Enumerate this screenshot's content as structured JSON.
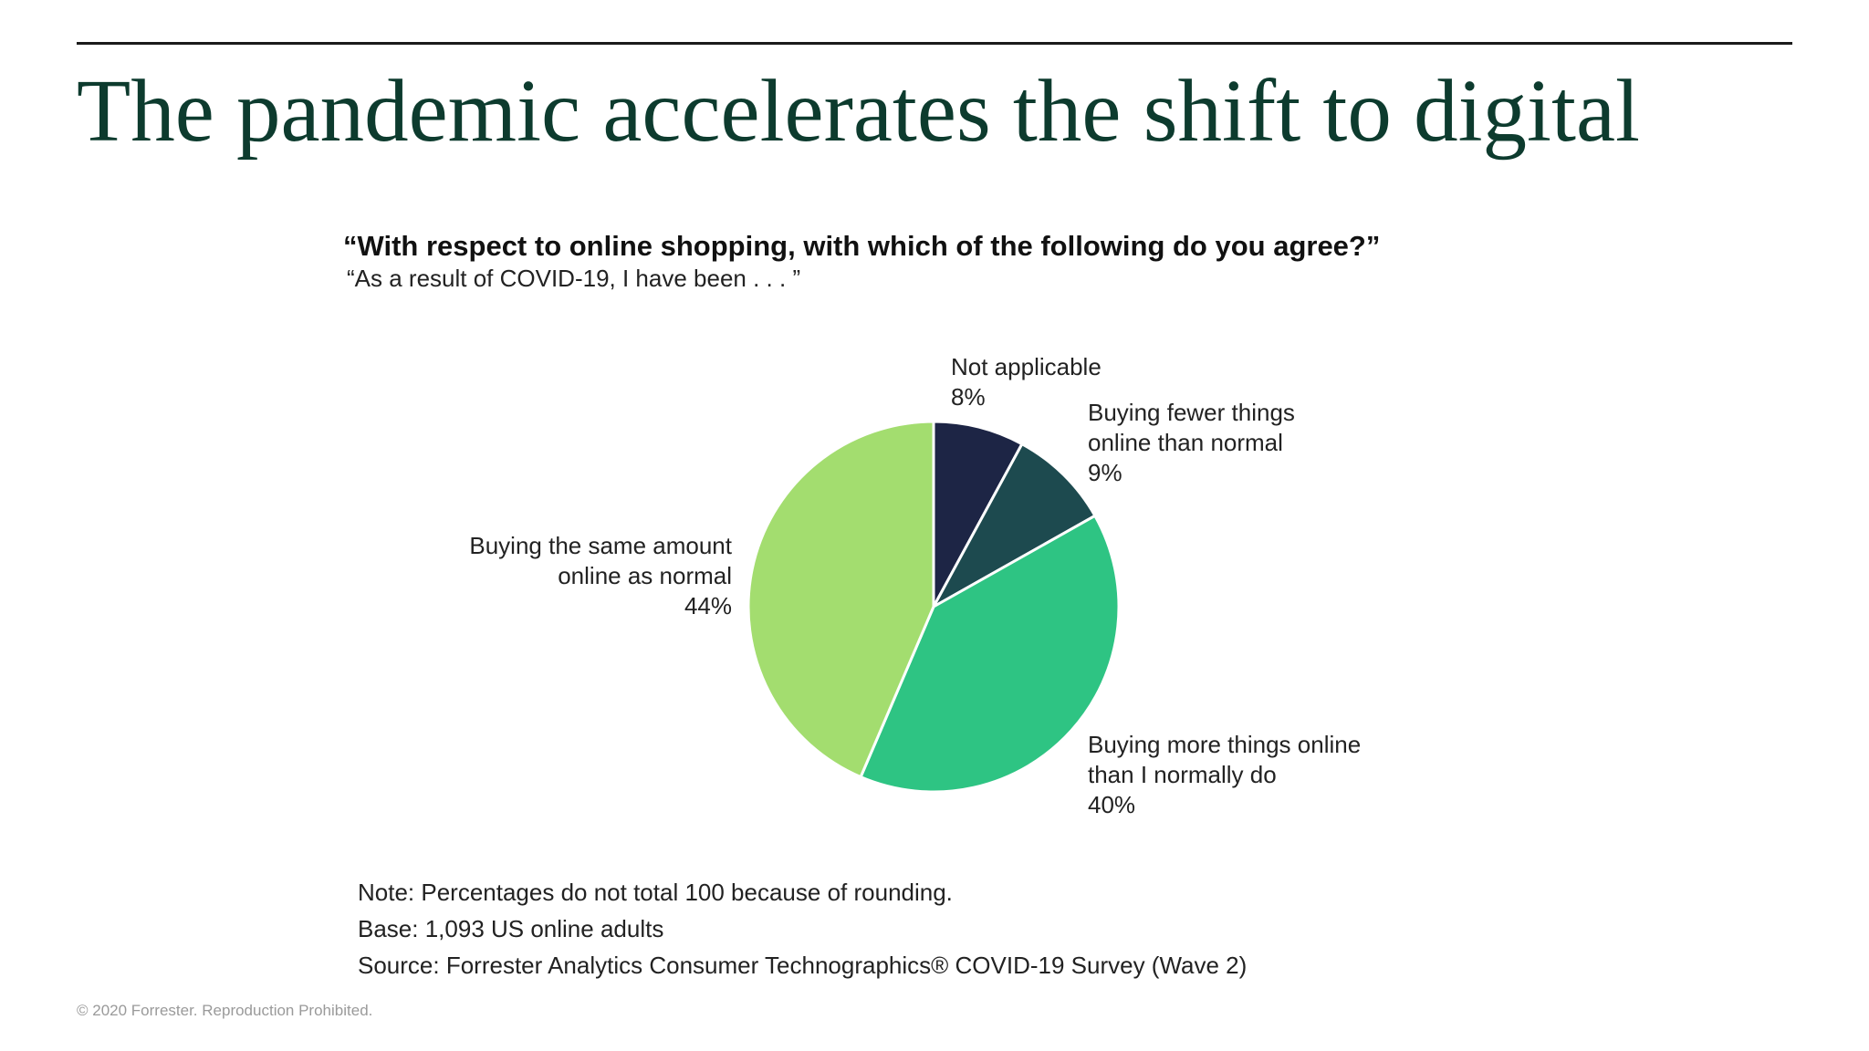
{
  "slide": {
    "title": "The pandemic accelerates the shift to digital",
    "copyright": "© 2020 Forrester. Reproduction Prohibited."
  },
  "chart_data": {
    "type": "pie",
    "title": "“With respect to online shopping, with which of the following do you agree?”",
    "subtitle": "“As a result of COVID-19, I have been . . . ”",
    "slices": [
      {
        "label_lines": [
          "Not applicable"
        ],
        "value": 8,
        "display": "8%",
        "color": "#1d2545"
      },
      {
        "label_lines": [
          "Buying fewer things",
          "online than normal"
        ],
        "value": 9,
        "display": "9%",
        "color": "#1d4a4f"
      },
      {
        "label_lines": [
          "Buying more things online",
          "than I normally do"
        ],
        "value": 40,
        "display": "40%",
        "color": "#2ec483"
      },
      {
        "label_lines": [
          "Buying the same amount",
          "online as normal"
        ],
        "value": 44,
        "display": "44%",
        "color": "#a3dd6f"
      }
    ],
    "start_angle_deg": 0,
    "direction": "clockwise"
  },
  "notes": {
    "note": "Note: Percentages do not total 100 because of rounding.",
    "base": "Base: 1,093 US online adults",
    "source": "Source: Forrester Analytics Consumer Technographics® COVID-19 Survey (Wave 2)"
  }
}
